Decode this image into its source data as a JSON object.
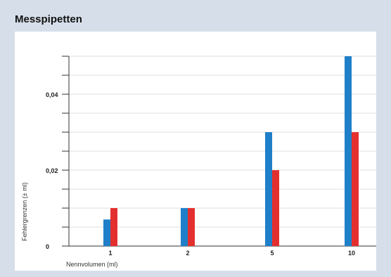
{
  "title": "Messpipetten",
  "chart_data": {
    "type": "bar",
    "title": "",
    "xlabel": "Nennvolumen (ml)",
    "ylabel": "Fehlergrenzen (± ml)",
    "categories": [
      "1",
      "2",
      "5",
      "10"
    ],
    "series": [
      {
        "values": [
          0.007,
          0.01,
          0.03,
          0.05
        ],
        "color": "#1f7fc8"
      },
      {
        "values": [
          0.01,
          0.01,
          0.02,
          0.03
        ],
        "color": "#e3302f"
      }
    ],
    "ylim": [
      0,
      0.05
    ],
    "y_tick_labels": [
      {
        "value": 0,
        "label": "0"
      },
      {
        "value": 0.02,
        "label": "0,02"
      },
      {
        "value": 0.04,
        "label": "0,04"
      }
    ],
    "y_minor_ticks": [
      0.005,
      0.01,
      0.015,
      0.025,
      0.03,
      0.035,
      0.045,
      0.05
    ],
    "grid": true,
    "colors": {
      "background": "#d6dfe9",
      "panel": "#ffffff",
      "grid": "#dddddd",
      "axis": "#333333"
    }
  }
}
